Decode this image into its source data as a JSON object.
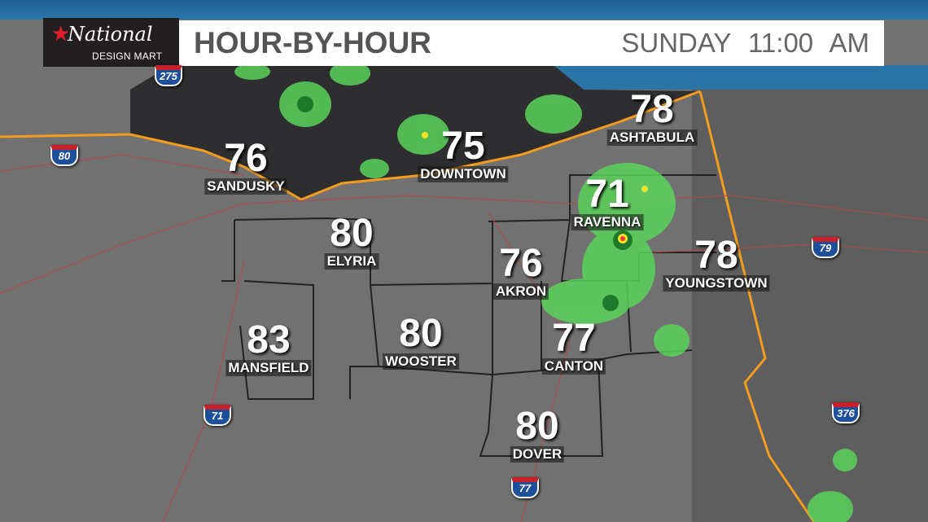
{
  "header": {
    "logo_text": "National DESIGN MART",
    "title": "HOUR-BY-HOUR",
    "day": "SUNDAY",
    "time": "11:00 AM"
  },
  "colors": {
    "accent_blue": "#2a74a8",
    "shoreline": "#f39c1e",
    "radar_green": "#5ad35a",
    "lake": "#2e2e30"
  },
  "cities": [
    {
      "name": "SANDUSKY",
      "temp": "76"
    },
    {
      "name": "DOWNTOWN",
      "temp": "75"
    },
    {
      "name": "ASHTABULA",
      "temp": "78"
    },
    {
      "name": "RAVENNA",
      "temp": "71"
    },
    {
      "name": "ELYRIA",
      "temp": "80"
    },
    {
      "name": "AKRON",
      "temp": "76"
    },
    {
      "name": "YOUNGSTOWN",
      "temp": "78"
    },
    {
      "name": "MANSFIELD",
      "temp": "83"
    },
    {
      "name": "WOOSTER",
      "temp": "80"
    },
    {
      "name": "CANTON",
      "temp": "77"
    },
    {
      "name": "DOVER",
      "temp": "80"
    }
  ],
  "interstates": [
    "275",
    "80",
    "79",
    "71",
    "376",
    "77"
  ]
}
